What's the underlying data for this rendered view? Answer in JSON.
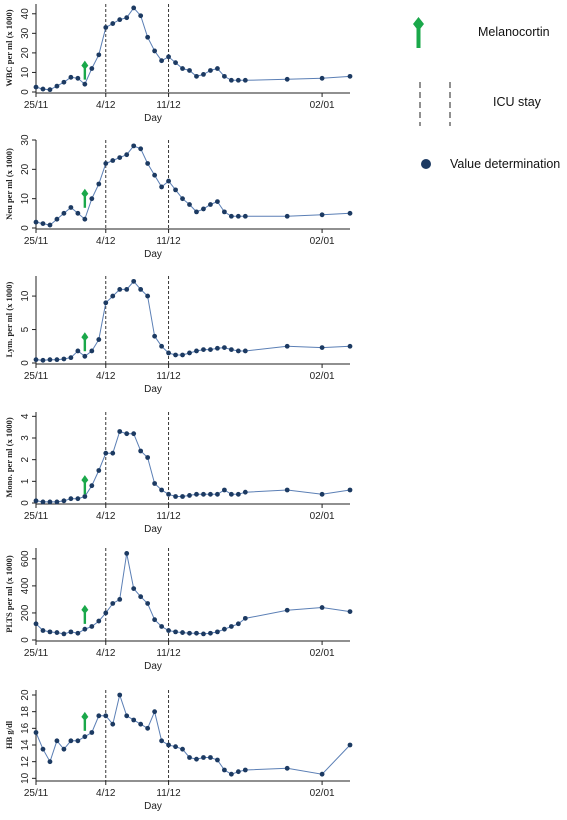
{
  "chart_data": [
    {
      "type": "line",
      "ylabel": "WBC per ml (x 1000)",
      "xlabel": "Day",
      "xticks": [
        "25/11",
        "4/12",
        "11/12",
        "02/01"
      ],
      "yticks": [
        0,
        10,
        20,
        30,
        40
      ],
      "ylim": [
        0,
        45
      ],
      "x": [
        0,
        1,
        2,
        3,
        4,
        5,
        6,
        7,
        8,
        9,
        10,
        11,
        12,
        13,
        14,
        15,
        16,
        17,
        18,
        19,
        20,
        21,
        22,
        23,
        24,
        25,
        26,
        27,
        28,
        29,
        30,
        36,
        41,
        45
      ],
      "values": [
        2.5,
        1.5,
        1.2,
        3,
        5,
        7.5,
        7,
        4,
        12,
        19,
        33,
        35,
        37,
        38,
        43,
        39,
        28,
        21,
        16,
        18,
        15,
        12,
        11,
        8,
        9,
        11,
        12,
        8,
        6,
        6,
        6,
        6.5,
        7,
        8
      ],
      "marker_x": 7,
      "marker_y": 14
    },
    {
      "type": "line",
      "ylabel": "Neu per ml (x 1000)",
      "xlabel": "Day",
      "xticks": [
        "25/11",
        "4/12",
        "11/12",
        "02/01"
      ],
      "yticks": [
        0,
        10,
        20,
        30
      ],
      "ylim": [
        0,
        30
      ],
      "x": [
        0,
        1,
        2,
        3,
        4,
        5,
        6,
        7,
        8,
        9,
        10,
        11,
        12,
        13,
        14,
        15,
        16,
        17,
        18,
        19,
        20,
        21,
        22,
        23,
        24,
        25,
        26,
        27,
        28,
        29,
        30,
        36,
        41,
        45
      ],
      "values": [
        2,
        1.5,
        1,
        3,
        5,
        7,
        5,
        3,
        10,
        15,
        22,
        23,
        24,
        25,
        28,
        27,
        22,
        18,
        14,
        16,
        13,
        10,
        8,
        5.5,
        6.5,
        8,
        9,
        5.5,
        4,
        4,
        4,
        4,
        4.5,
        5
      ],
      "marker_x": 7,
      "marker_y": 12
    },
    {
      "type": "line",
      "ylabel": "Lym. per ml (x 1000)",
      "xlabel": "Day",
      "xticks": [
        "25/11",
        "4/12",
        "11/12",
        "02/01"
      ],
      "yticks": [
        0,
        5,
        10
      ],
      "ylim": [
        0,
        13
      ],
      "x": [
        0,
        1,
        2,
        3,
        4,
        5,
        6,
        7,
        8,
        9,
        10,
        11,
        12,
        13,
        14,
        15,
        16,
        17,
        18,
        19,
        20,
        21,
        22,
        23,
        24,
        25,
        26,
        27,
        28,
        29,
        30,
        36,
        41,
        45
      ],
      "values": [
        0.5,
        0.4,
        0.5,
        0.5,
        0.6,
        0.8,
        1.8,
        1,
        1.8,
        3.5,
        9,
        10,
        11,
        11,
        12.2,
        11,
        10,
        4,
        2.5,
        1.5,
        1.2,
        1.2,
        1.5,
        1.8,
        2,
        2,
        2.2,
        2.3,
        2,
        1.8,
        1.8,
        2.5,
        2.3,
        2.5
      ],
      "marker_x": 7,
      "marker_y": 4
    },
    {
      "type": "line",
      "ylabel": "Mono. per ml (x 1000)",
      "xlabel": "Day",
      "xticks": [
        "25/11",
        "4/12",
        "11/12",
        "02/01"
      ],
      "yticks": [
        0,
        1,
        2,
        3,
        4
      ],
      "ylim": [
        0,
        4.2
      ],
      "x": [
        0,
        1,
        2,
        3,
        4,
        5,
        6,
        7,
        8,
        9,
        10,
        11,
        12,
        13,
        14,
        15,
        16,
        17,
        18,
        19,
        20,
        21,
        22,
        23,
        24,
        25,
        26,
        27,
        28,
        29,
        30,
        36,
        41,
        45
      ],
      "values": [
        0.1,
        0.05,
        0.05,
        0.05,
        0.1,
        0.2,
        0.2,
        0.3,
        0.8,
        1.5,
        2.3,
        2.3,
        3.3,
        3.2,
        3.2,
        2.4,
        2.1,
        0.9,
        0.6,
        0.4,
        0.3,
        0.3,
        0.35,
        0.4,
        0.4,
        0.4,
        0.4,
        0.6,
        0.4,
        0.4,
        0.5,
        0.6,
        0.4,
        0.6
      ],
      "marker_x": 7,
      "marker_y": 1.1
    },
    {
      "type": "line",
      "ylabel": "PLTS per ml (x 1000)",
      "xlabel": "Day",
      "xticks": [
        "25/11",
        "4/12",
        "11/12",
        "02/01"
      ],
      "yticks": [
        0,
        200,
        400,
        600
      ],
      "ylim": [
        0,
        680
      ],
      "x": [
        0,
        1,
        2,
        3,
        4,
        5,
        6,
        7,
        8,
        9,
        10,
        11,
        12,
        13,
        14,
        15,
        16,
        17,
        18,
        19,
        20,
        21,
        22,
        23,
        24,
        25,
        26,
        27,
        28,
        29,
        30,
        36,
        41,
        45
      ],
      "values": [
        120,
        70,
        60,
        55,
        45,
        60,
        50,
        80,
        100,
        140,
        200,
        270,
        300,
        640,
        380,
        320,
        270,
        150,
        100,
        70,
        60,
        55,
        50,
        50,
        45,
        50,
        60,
        80,
        100,
        120,
        160,
        220,
        240,
        210
      ],
      "marker_x": 7,
      "marker_y": 230
    },
    {
      "type": "line",
      "ylabel": "HB g/dl",
      "xlabel": "Day",
      "xticks": [
        "25/11",
        "4/12",
        "11/12",
        "02/01"
      ],
      "yticks": [
        10,
        12,
        14,
        16,
        18,
        20
      ],
      "ylim": [
        9.8,
        20.6
      ],
      "x": [
        0,
        1,
        2,
        3,
        4,
        5,
        6,
        7,
        8,
        9,
        10,
        11,
        12,
        13,
        14,
        15,
        16,
        17,
        18,
        19,
        20,
        21,
        22,
        23,
        24,
        25,
        26,
        27,
        28,
        29,
        30,
        36,
        41,
        45
      ],
      "values": [
        15.5,
        13.5,
        12,
        14.5,
        13.5,
        14.5,
        14.5,
        15,
        15.5,
        17.5,
        17.5,
        16.5,
        20,
        17.5,
        17,
        16.5,
        16,
        18,
        14.5,
        14,
        13.8,
        13.5,
        12.5,
        12.3,
        12.5,
        12.5,
        12.2,
        11,
        10.5,
        10.8,
        11,
        11.2,
        10.5,
        14
      ],
      "marker_x": 7,
      "marker_y": 17.5
    }
  ],
  "legend": {
    "melanocortin": "Melanocortin",
    "icu": "ICU stay",
    "value": "Value determination"
  },
  "colors": {
    "line": "#5b7fb5",
    "marker": "#1c3a62",
    "green": "#1aa84a"
  },
  "x_tick_positions": [
    0,
    10,
    19,
    41
  ],
  "icu_lines": [
    10,
    19
  ]
}
